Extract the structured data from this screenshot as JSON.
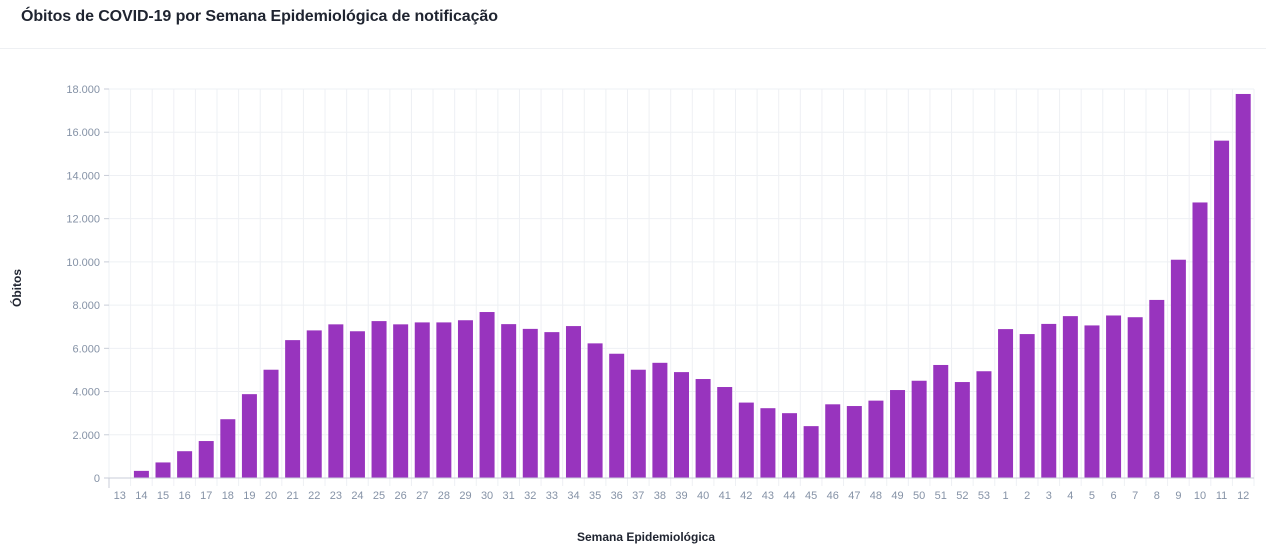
{
  "header": {
    "title": "Óbitos de COVID-19 por Semana Epidemiológica de notificação"
  },
  "chart_data": {
    "type": "bar",
    "title": "Óbitos de COVID-19 por Semana Epidemiológica de notificação",
    "xlabel": "Semana Epidemiológica",
    "ylabel": "Óbitos",
    "ylim": [
      0,
      18000
    ],
    "yticks": [
      0,
      2000,
      4000,
      6000,
      8000,
      10000,
      12000,
      14000,
      16000,
      18000
    ],
    "ytick_labels": [
      "0",
      "2.000",
      "4.000",
      "6.000",
      "8.000",
      "10.000",
      "12.000",
      "14.000",
      "16.000",
      "18.000"
    ],
    "grid": true,
    "legend": "none",
    "bar_color": "#9834be",
    "categories": [
      "13",
      "14",
      "15",
      "16",
      "17",
      "18",
      "19",
      "20",
      "21",
      "22",
      "23",
      "24",
      "25",
      "26",
      "27",
      "28",
      "29",
      "30",
      "31",
      "32",
      "33",
      "34",
      "35",
      "36",
      "37",
      "38",
      "39",
      "40",
      "41",
      "42",
      "43",
      "44",
      "45",
      "46",
      "47",
      "48",
      "49",
      "50",
      "51",
      "52",
      "53",
      "1",
      "2",
      "3",
      "4",
      "5",
      "6",
      "7",
      "8",
      "9",
      "10",
      "11",
      "12"
    ],
    "values": [
      0,
      330,
      720,
      1240,
      1710,
      2720,
      3880,
      5010,
      6380,
      6830,
      7110,
      6790,
      7260,
      7110,
      7200,
      7200,
      7300,
      7680,
      7120,
      6900,
      6750,
      7030,
      6230,
      5750,
      5010,
      5330,
      4900,
      4580,
      4210,
      3490,
      3230,
      3000,
      2400,
      3410,
      3330,
      3580,
      4070,
      4500,
      5230,
      4440,
      4940,
      6890,
      6660,
      7130,
      7490,
      7060,
      7520,
      7440,
      8240,
      10100,
      12750,
      15610,
      17770
    ]
  }
}
